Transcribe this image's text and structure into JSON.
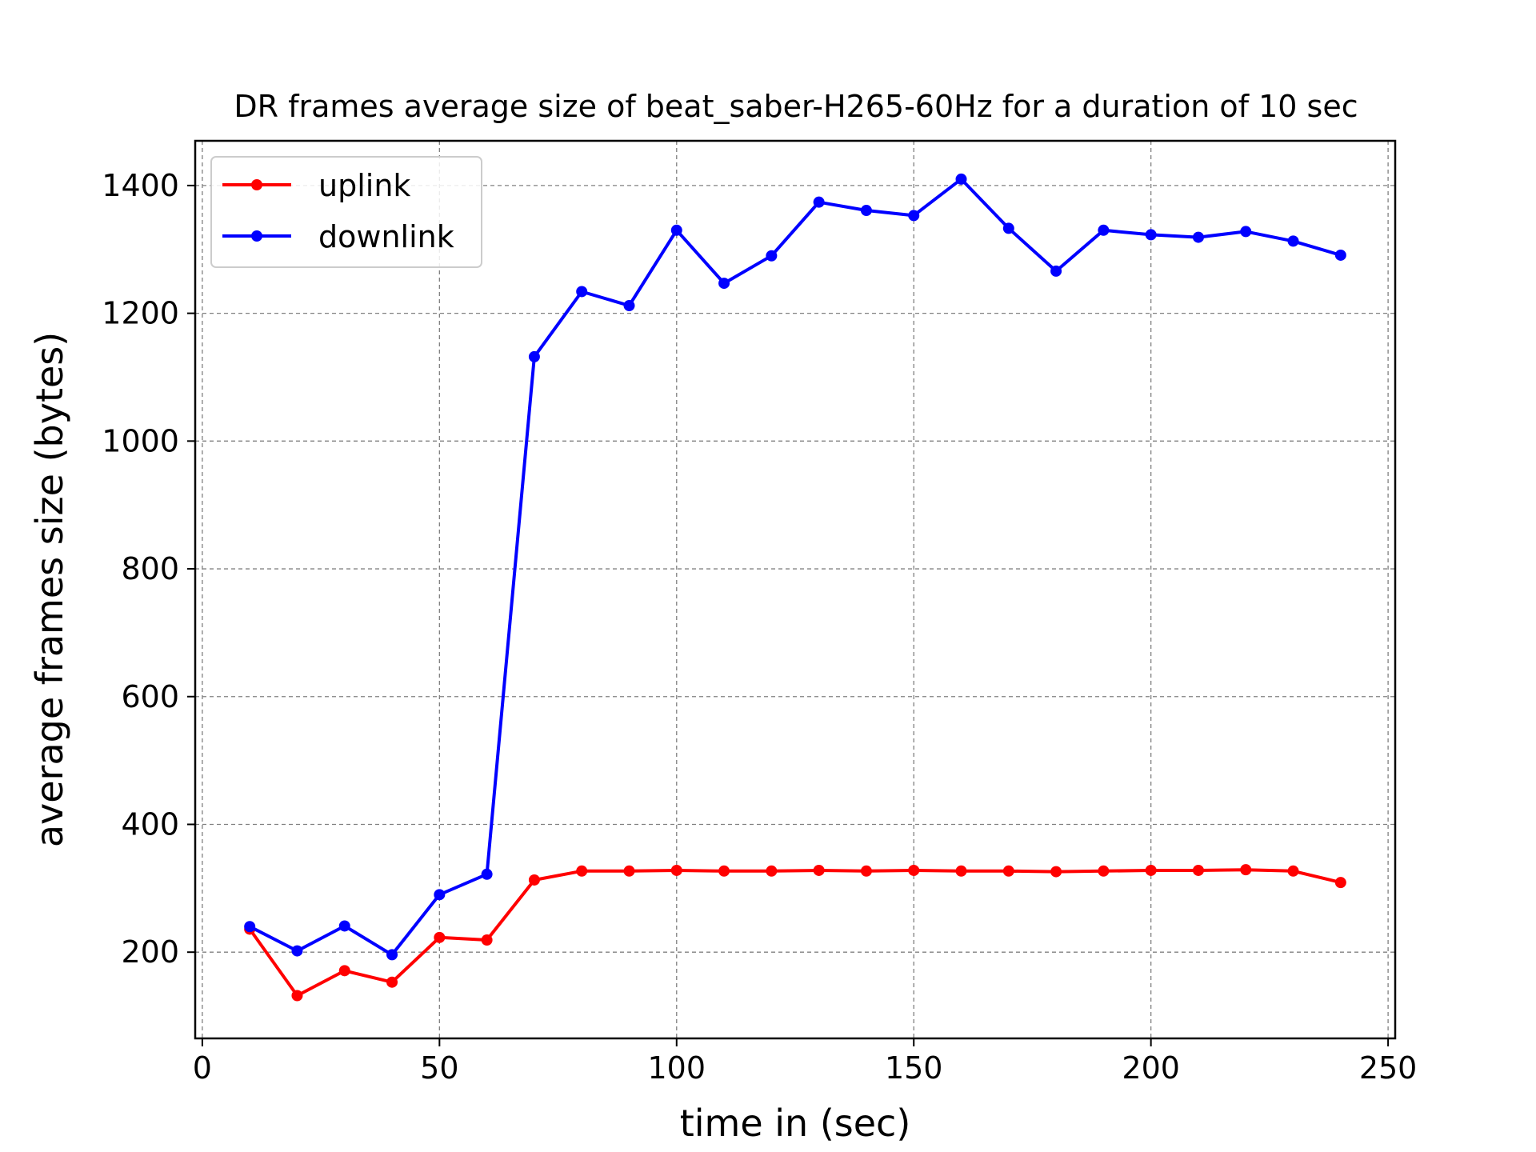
{
  "chart_data": {
    "type": "line",
    "title": "DR frames average size of beat_saber-H265-60Hz for a duration of 10 sec",
    "xlabel": "time in (sec)",
    "ylabel": "average frames size (bytes)",
    "xlim": [
      -1.5,
      251.5
    ],
    "ylim": [
      65,
      1470
    ],
    "xticks": [
      0,
      50,
      100,
      150,
      200,
      250
    ],
    "yticks": [
      200,
      400,
      600,
      800,
      1000,
      1200,
      1400
    ],
    "grid": true,
    "legend_position": "top-left",
    "x": [
      10,
      20,
      30,
      40,
      50,
      60,
      70,
      80,
      90,
      100,
      110,
      120,
      130,
      140,
      150,
      160,
      170,
      180,
      190,
      200,
      210,
      220,
      230,
      240
    ],
    "series": [
      {
        "name": "uplink",
        "color": "#ff0000",
        "values": [
          236,
          132,
          171,
          153,
          223,
          219,
          313,
          327,
          327,
          328,
          327,
          327,
          328,
          327,
          328,
          327,
          327,
          326,
          327,
          328,
          328,
          329,
          327,
          309
        ]
      },
      {
        "name": "downlink",
        "color": "#0000ff",
        "values": [
          240,
          202,
          241,
          196,
          290,
          322,
          1132,
          1234,
          1212,
          1330,
          1247,
          1290,
          1374,
          1361,
          1353,
          1410,
          1333,
          1266,
          1330,
          1323,
          1319,
          1328,
          1313,
          1291
        ]
      }
    ]
  }
}
